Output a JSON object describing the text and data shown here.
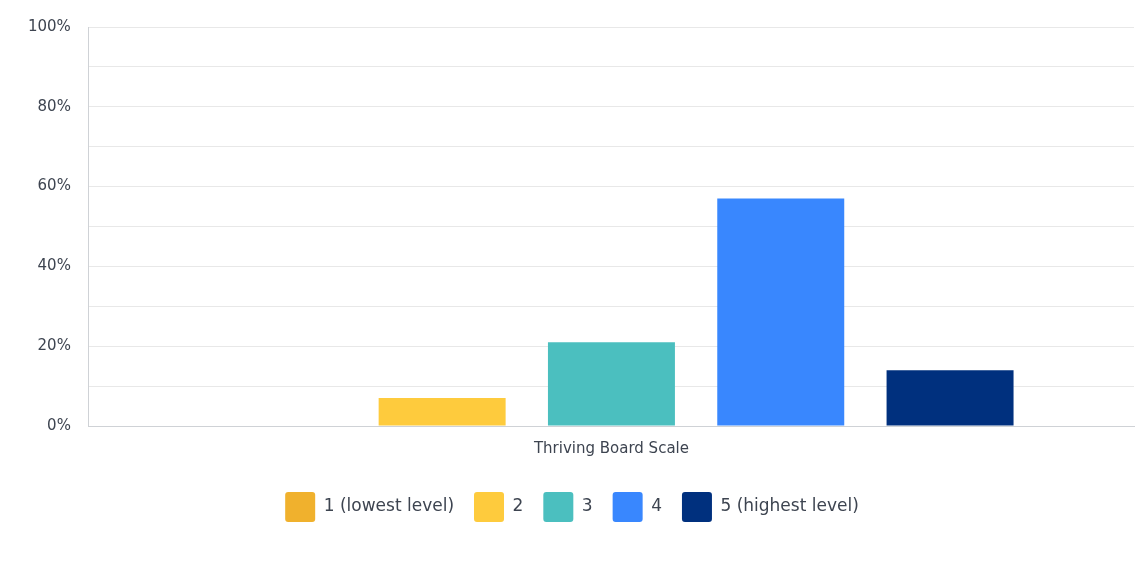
{
  "chart_data": {
    "type": "bar",
    "categories": [
      "Thriving Board Scale"
    ],
    "series": [
      {
        "name": "1 (lowest level)",
        "color": "#f0b12d",
        "values": [
          0
        ]
      },
      {
        "name": "2",
        "color": "#fecb3d",
        "values": [
          7
        ]
      },
      {
        "name": "3",
        "color": "#4bbfbf",
        "values": [
          21
        ]
      },
      {
        "name": "4",
        "color": "#3987fe",
        "values": [
          57
        ]
      },
      {
        "name": "5 (highest level)",
        "color": "#00307e",
        "values": [
          14
        ]
      }
    ],
    "ylim": [
      0,
      100
    ],
    "yticks": [
      {
        "value": 0,
        "label": "0%"
      },
      {
        "value": 10,
        "label": null
      },
      {
        "value": 20,
        "label": "20%"
      },
      {
        "value": 30,
        "label": null
      },
      {
        "value": 40,
        "label": "40%"
      },
      {
        "value": 50,
        "label": null
      },
      {
        "value": 60,
        "label": "60%"
      },
      {
        "value": 70,
        "label": null
      },
      {
        "value": 80,
        "label": "80%"
      },
      {
        "value": 90,
        "label": null
      },
      {
        "value": 100,
        "label": "100%"
      }
    ],
    "grid": "y",
    "legend": "bottom"
  }
}
